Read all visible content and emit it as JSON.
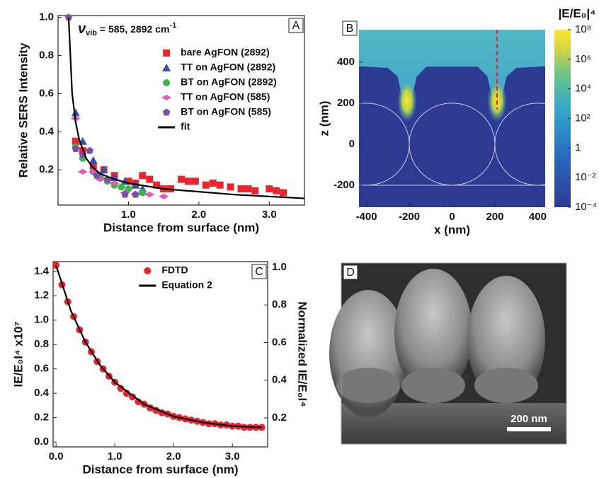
{
  "chart_data": [
    {
      "type": "scatter",
      "label": "A",
      "annotation": {
        "symbol": "ν",
        "subscript": "vib",
        "text": " = 585, 2892 cm",
        "superscript": "-1"
      },
      "xlabel": "Distance from surface (nm)",
      "ylabel": "Relative SERS Intensity",
      "xlim": [
        0,
        3.5
      ],
      "ylim": [
        0.015,
        1.01
      ],
      "xticks": [
        {
          "value": 1,
          "label": "1.0"
        },
        {
          "value": 2,
          "label": "2.0"
        },
        {
          "value": 3,
          "label": "3.0"
        }
      ],
      "yticks": [
        0.2,
        0.4,
        0.6,
        0.8,
        {
          "value": 1,
          "label": "1.0"
        }
      ],
      "series": [
        {
          "name": "bare AgFON (2892)",
          "color": "#e8262c",
          "marker": "square",
          "x": [
            0.25,
            0.35,
            0.5,
            0.65,
            0.8,
            1.0,
            1.1,
            1.2,
            1.3,
            1.4,
            1.5,
            1.6,
            1.75,
            1.85,
            1.95,
            2.1,
            2.2,
            2.3,
            2.45,
            2.6,
            2.7,
            2.8,
            3.0,
            3.1,
            3.2
          ],
          "values": [
            0.35,
            0.3,
            0.22,
            0.2,
            0.17,
            0.14,
            0.13,
            0.17,
            0.15,
            0.12,
            0.1,
            0.1,
            0.15,
            0.14,
            0.14,
            0.12,
            0.13,
            0.12,
            0.11,
            0.1,
            0.1,
            0.09,
            0.1,
            0.09,
            0.08
          ]
        },
        {
          "name": "TT on AgFON (2892)",
          "color": "#3a4fb0",
          "marker": "triangle",
          "x": [
            0.25,
            0.35,
            0.5,
            0.65,
            0.8,
            0.95,
            1.1,
            1.2
          ],
          "values": [
            0.5,
            0.35,
            0.25,
            0.2,
            0.16,
            0.14,
            0.12,
            0.1
          ]
        },
        {
          "name": "BT on AgFON (2892)",
          "color": "#3cb54a",
          "marker": "circle",
          "x": [
            0.25,
            0.35,
            0.5,
            0.6,
            0.7,
            0.8,
            0.9,
            1.0,
            1.2
          ],
          "values": [
            0.32,
            0.26,
            0.19,
            0.16,
            0.14,
            0.12,
            0.11,
            0.1,
            0.08
          ]
        },
        {
          "name": "TT on AgFON (585)",
          "color": "#e05ab8",
          "marker": "diamond",
          "x": [
            0.25,
            0.35,
            0.5,
            0.6,
            0.8,
            0.95,
            1.1,
            1.3,
            1.5
          ],
          "values": [
            0.47,
            0.19,
            0.19,
            0.15,
            0.13,
            0.08,
            0.07,
            0.07,
            0.06
          ]
        },
        {
          "name": "BT on AgFON (585)",
          "color": "#7b4fa8",
          "marker": "pentagon",
          "x": [
            0.15,
            0.25,
            0.35,
            0.45,
            0.55,
            0.7,
            0.95,
            1.1
          ],
          "values": [
            1.0,
            0.31,
            0.28,
            0.3,
            0.17,
            0.15,
            0.07,
            0.07
          ]
        },
        {
          "name": "fit",
          "color": "#000000",
          "mode": "line",
          "x": [
            0.15,
            0.2,
            0.25,
            0.3,
            0.4,
            0.5,
            0.6,
            0.8,
            1.0,
            1.5,
            2.0,
            2.5,
            3.0,
            3.5
          ],
          "values": [
            1.0,
            0.6,
            0.45,
            0.36,
            0.26,
            0.21,
            0.18,
            0.15,
            0.13,
            0.1,
            0.085,
            0.07,
            0.06,
            0.05
          ]
        }
      ]
    },
    {
      "type": "heatmap",
      "label": "B",
      "xlabel": "x (nm)",
      "ylabel": "z (nm)",
      "xlim": [
        -435,
        435
      ],
      "ylim": [
        -307,
        558
      ],
      "xticks": [
        -400,
        -200,
        0,
        200,
        400
      ],
      "yticks": [
        -200,
        0,
        200,
        400
      ],
      "colorbar": {
        "title": "|E/E₀|⁴",
        "scale": "log",
        "lim": [
          0.0001,
          100000000
        ],
        "ticks": [
          {
            "value": 100000000,
            "label": "10⁸"
          },
          {
            "value": 1000000,
            "label": "10⁶"
          },
          {
            "value": 10000,
            "label": "10⁴"
          },
          {
            "value": 100,
            "label": "10²"
          },
          1,
          {
            "value": 0.01,
            "label": "10⁻²"
          },
          {
            "value": 0.0001,
            "label": "10⁻⁴"
          }
        ]
      }
    },
    {
      "type": "scatter",
      "label": "C",
      "xlabel": "Distance from surface (nm)",
      "ylabel": "IE/E₀I⁴ x10⁷",
      "y2label": "Normalized IE/E₀I⁴",
      "xlim": [
        -0.05,
        3.6
      ],
      "ylim": [
        -0.04,
        1.48
      ],
      "y2lim": [
        0.046,
        1.03
      ],
      "xticks": [
        {
          "value": 0,
          "label": "0.0"
        },
        {
          "value": 1,
          "label": "1.0"
        },
        {
          "value": 2,
          "label": "2.0"
        },
        {
          "value": 3,
          "label": "3.0"
        }
      ],
      "yticks": [
        {
          "value": 0,
          "label": "0.0"
        },
        0.2,
        0.4,
        0.6,
        0.8,
        {
          "value": 1,
          "label": "1.0"
        },
        1.2,
        1.4
      ],
      "y2ticks": [
        0.2,
        0.4,
        0.6,
        0.8,
        {
          "value": 1,
          "label": "1.0"
        }
      ],
      "series": [
        {
          "name": "FDTD",
          "color": "#e8262c",
          "marker": "circle",
          "x": [
            0,
            0.1,
            0.2,
            0.3,
            0.4,
            0.5,
            0.6,
            0.7,
            0.8,
            0.9,
            1.0,
            1.1,
            1.2,
            1.3,
            1.4,
            1.5,
            1.6,
            1.7,
            1.8,
            1.9,
            2.0,
            2.1,
            2.2,
            2.3,
            2.4,
            2.5,
            2.6,
            2.7,
            2.8,
            2.9,
            3.0,
            3.1,
            3.2,
            3.3,
            3.4,
            3.5
          ],
          "values": [
            1.45,
            1.29,
            1.15,
            1.03,
            0.92,
            0.82,
            0.74,
            0.66,
            0.6,
            0.54,
            0.49,
            0.44,
            0.4,
            0.37,
            0.33,
            0.31,
            0.28,
            0.26,
            0.24,
            0.23,
            0.21,
            0.2,
            0.19,
            0.18,
            0.17,
            0.16,
            0.15,
            0.15,
            0.14,
            0.14,
            0.13,
            0.13,
            0.12,
            0.12,
            0.12,
            0.12
          ]
        },
        {
          "name": "Equation 2",
          "color": "#000000",
          "mode": "line",
          "x": [
            0,
            0.25,
            0.5,
            0.75,
            1.0,
            1.5,
            2.0,
            2.5,
            3.0,
            3.5
          ],
          "values": [
            1.45,
            1.08,
            0.82,
            0.63,
            0.49,
            0.31,
            0.21,
            0.16,
            0.13,
            0.12
          ]
        }
      ]
    },
    {
      "type": "image",
      "label": "D",
      "scale_bar": "200 nm"
    }
  ]
}
